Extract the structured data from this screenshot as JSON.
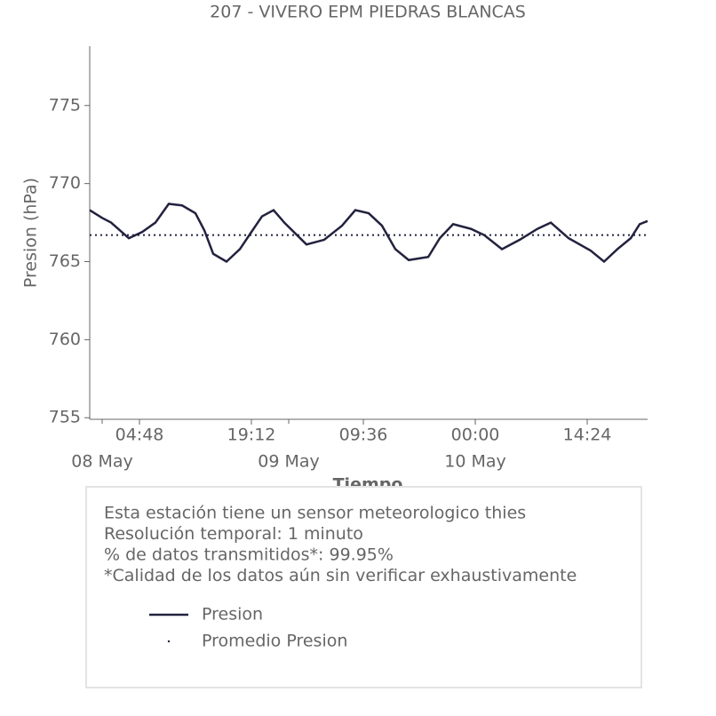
{
  "chart_data": {
    "type": "line",
    "title": "207 - VIVERO EPM PIEDRAS BLANCAS",
    "ylabel": "Presion (hPa)",
    "xlabel": "Tiempo",
    "ylim": [
      754.9,
      778.8
    ],
    "yticks": [
      755,
      760,
      765,
      770,
      775
    ],
    "xlim": [
      "07 May 22:24",
      "10 May 22:10"
    ],
    "xticks": [
      {
        "value": "08 May 04:48",
        "label": "04:48"
      },
      {
        "value": "08 May 19:12",
        "label": "19:12"
      },
      {
        "value": "09 May 09:36",
        "label": "09:36"
      },
      {
        "value": "10 May 00:00",
        "label": "00:00"
      },
      {
        "value": "10 May 14:24",
        "label": "14:24"
      }
    ],
    "xticks_minor": [
      {
        "value": "08 May 00:00",
        "label": "08 May"
      },
      {
        "value": "09 May 00:00",
        "label": "09 May"
      },
      {
        "value": "10 May 00:00",
        "label": "10 May"
      }
    ],
    "x": [
      "07 May 22:24",
      "08 May 00:00",
      "08 May 01:09",
      "08 May 03:26",
      "08 May 05:09",
      "08 May 06:51",
      "08 May 08:34",
      "08 May 10:17",
      "08 May 12:00",
      "08 May 13:09",
      "08 May 14:17",
      "08 May 16:00",
      "08 May 17:43",
      "08 May 19:12",
      "08 May 20:34",
      "08 May 22:03",
      "08 May 23:26",
      "09 May 02:17",
      "09 May 04:34",
      "09 May 06:51",
      "09 May 08:34",
      "09 May 10:17",
      "09 May 12:00",
      "09 May 13:43",
      "09 May 15:26",
      "09 May 17:57",
      "09 May 19:26",
      "09 May 21:09",
      "09 May 23:26",
      "10 May 01:09",
      "10 May 03:26",
      "10 May 05:43",
      "10 May 08:00",
      "10 May 09:43",
      "10 May 12:00",
      "10 May 14:51",
      "10 May 16:34",
      "10 May 18:17",
      "10 May 20:00",
      "10 May 21:09",
      "10 May 22:10"
    ],
    "series": [
      {
        "name": "Presion",
        "color": "#22223f",
        "style": "solid",
        "values": [
          768.3,
          767.8,
          767.5,
          766.5,
          766.9,
          767.5,
          768.7,
          768.6,
          768.1,
          767.0,
          765.5,
          765.0,
          765.8,
          766.9,
          767.9,
          768.3,
          767.5,
          766.1,
          766.4,
          767.3,
          768.3,
          768.1,
          767.3,
          765.8,
          765.1,
          765.3,
          766.5,
          767.4,
          767.1,
          766.7,
          765.8,
          766.4,
          767.1,
          767.5,
          766.5,
          765.7,
          765.0,
          765.8,
          766.5,
          767.4,
          767.6
        ]
      },
      {
        "name": "Promedio Presion",
        "color": "#22223f",
        "style": "dotted",
        "value": 766.7
      }
    ],
    "info": [
      "Esta estación tiene un sensor meteorologico thies",
      "Resolución temporal: 1 minuto",
      "% de datos transmitidos*: 99.95%",
      "*Calidad de los datos aún sin verificar exhaustivamente"
    ]
  }
}
